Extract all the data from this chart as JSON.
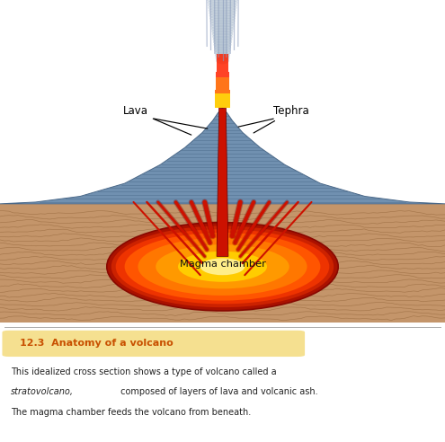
{
  "title_text": "12.3  Anatomy of a volcano",
  "title_bg": "#f5e090",
  "title_color": "#c85000",
  "caption1": "This idealized cross section shows a type of volcano called a",
  "caption2_italic": "stratovolcano,",
  "caption2_rest": " composed of layers of lava and volcanic ash.",
  "caption3": "The magma chamber feeds the volcano from beneath.",
  "label_lava": "Lava",
  "label_tephra": "Tephra",
  "label_magma": "Magma chamber",
  "bg": "#ffffff",
  "ground_fill": "#c4956a",
  "ground_line": "#8a5c30",
  "volcano_fill": "#7090b0",
  "volcano_line": "#4a6888",
  "volcano_stripe": "#4a6888",
  "lava_bright": "#cc1100",
  "lava_orange": "#ff6600",
  "lava_yellow": "#ffcc00",
  "steam_blue": "#aabbcc",
  "cloud_fill": "#d8d8d8"
}
